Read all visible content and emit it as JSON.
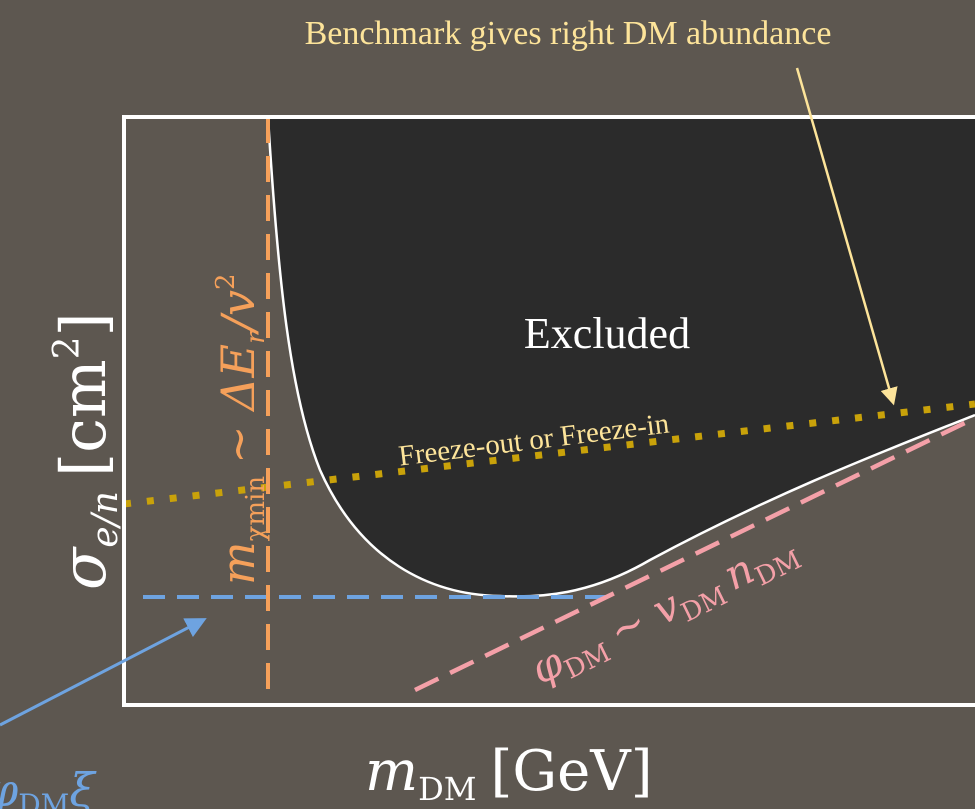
{
  "header_note": "Benchmark gives right DM abundance",
  "region_label": "Excluded",
  "freeze_label": "Freeze-out or Freeze-in",
  "axes": {
    "y": {
      "sym": "σ",
      "sub": "e/n",
      "unit_open": "[cm",
      "unit_sup": "2",
      "unit_close": "]"
    },
    "x": {
      "sym": "m",
      "sub": "DM",
      "unit": "[GeV]"
    }
  },
  "mass_threshold": {
    "m": "m",
    "sub": "χmin",
    "rel": "∼ ΔE",
    "sub2": "r",
    "tail": "/v",
    "sup": "2"
  },
  "flux_line": {
    "phi": "φ",
    "sub": "DM",
    "rel": "∼ v",
    "sub2": "DM",
    "n": "n",
    "sub3": "DM"
  },
  "bottom_left": {
    "phi": "φ",
    "sub": "DM",
    "xi": "ξ"
  },
  "colors": {
    "background": "#5d5750",
    "excluded": "#2b2b2b",
    "frame": "#ffffff",
    "orange": "#f5a05a",
    "blue": "#6ea3e0",
    "pink": "#f4a0a8",
    "gold": "#c9a20a",
    "yellow": "#fde49a",
    "arrow_yellow": "#fde49a"
  }
}
